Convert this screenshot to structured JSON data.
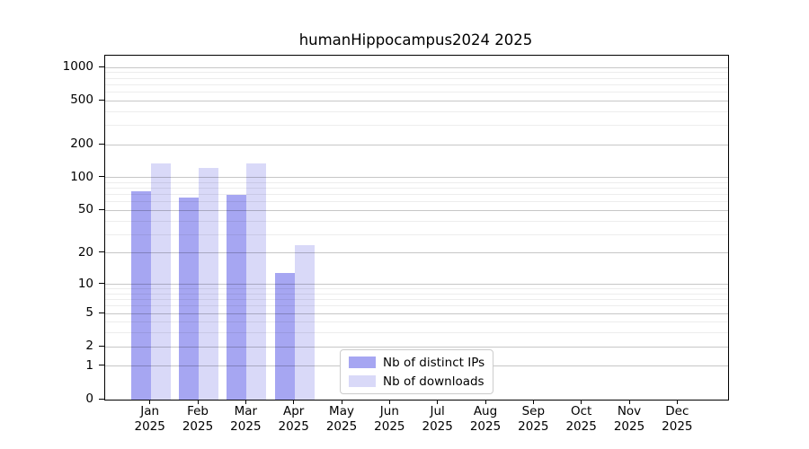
{
  "figure": {
    "background": "#ffffff"
  },
  "chart_data": {
    "type": "bar",
    "title": "humanHippocampus2024 2025",
    "categories": [
      "Jan 2025",
      "Feb 2025",
      "Mar 2025",
      "Apr 2025",
      "May 2025",
      "Jun 2025",
      "Jul 2025",
      "Aug 2025",
      "Sep 2025",
      "Oct 2025",
      "Nov 2025",
      "Dec 2025"
    ],
    "x_tick_labels": {
      "months": [
        "Jan",
        "Feb",
        "Mar",
        "Apr",
        "May",
        "Jun",
        "Jul",
        "Aug",
        "Sep",
        "Oct",
        "Nov",
        "Dec"
      ],
      "year": "2025"
    },
    "series": [
      {
        "name": "Nb of distinct IPs",
        "color": "#a6a6f2",
        "values": [
          75,
          66,
          70,
          13,
          0,
          0,
          0,
          0,
          0,
          0,
          0,
          0
        ]
      },
      {
        "name": "Nb of downloads",
        "color": "#d9d9f8",
        "values": [
          135,
          123,
          135,
          24,
          0,
          0,
          0,
          0,
          0,
          0,
          0,
          0
        ]
      }
    ],
    "yaxis": {
      "scale": "log1p",
      "min": 0,
      "max": 1277,
      "major_ticks": [
        0,
        1,
        2,
        5,
        10,
        20,
        50,
        100,
        200,
        500,
        1000
      ],
      "minor_ticks": [
        3,
        4,
        6,
        7,
        8,
        9,
        30,
        40,
        60,
        70,
        80,
        90,
        300,
        400,
        600,
        700,
        800,
        900
      ]
    },
    "grid": {
      "major_color": "rgba(0,0,0,0.22)",
      "minor_color": "rgba(0,0,0,0.07)"
    },
    "legend": {
      "location": "lower center"
    },
    "xlabel": "",
    "ylabel": ""
  }
}
